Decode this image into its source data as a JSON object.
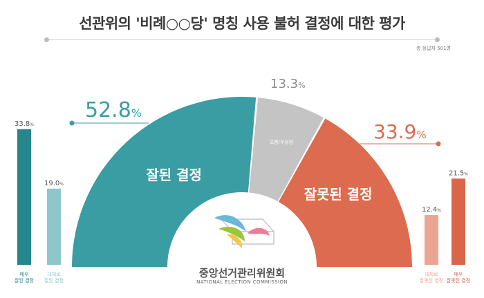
{
  "title": "선관위의 '비례○○당' 명칭 사용 불허 결정에 대한 평가",
  "respondents": "총 응답자 501명",
  "colors": {
    "positive": "#3a9da3",
    "neutral": "#c4c4c4",
    "negative": "#dc6b4f",
    "positive_strong": "#25868c",
    "positive_mild": "#8ec6c9",
    "negative_mild": "#eba693",
    "negative_strong": "#d9664a"
  },
  "chart_data": [
    {
      "type": "pie",
      "style": "half-donut",
      "slices": [
        {
          "label": "잘된 결정",
          "value": 52.8,
          "value_text": "52.8",
          "unit": "%"
        },
        {
          "label": "모름/무응답",
          "value": 13.3,
          "value_text": "13.3",
          "unit": "%"
        },
        {
          "label": "잘못된 결정",
          "value": 33.9,
          "value_text": "33.9",
          "unit": "%"
        }
      ]
    },
    {
      "type": "bar",
      "categories": [
        "매우 잘된 결정",
        "대체로 잘된 결정"
      ],
      "category_lines": [
        [
          "매우",
          "잘된 결정"
        ],
        [
          "대체로",
          "잘된 결정"
        ]
      ],
      "values": [
        33.8,
        19.0
      ],
      "value_texts": [
        "33.8",
        "19.0"
      ],
      "unit": "%",
      "ylim": [
        0,
        60
      ]
    },
    {
      "type": "bar",
      "categories": [
        "대체로 잘못된 결정",
        "매우 잘못된 결정"
      ],
      "category_lines": [
        [
          "대체로",
          "잘못된 결정"
        ],
        [
          "매우",
          "잘못된 결정"
        ]
      ],
      "values": [
        12.4,
        21.5
      ],
      "value_texts": [
        "12.4",
        "21.5"
      ],
      "unit": "%",
      "ylim": [
        0,
        60
      ]
    }
  ],
  "logo": {
    "name": "중앙선거관리위원회",
    "subtitle": "NATIONAL ELECTION COMMISSION"
  }
}
